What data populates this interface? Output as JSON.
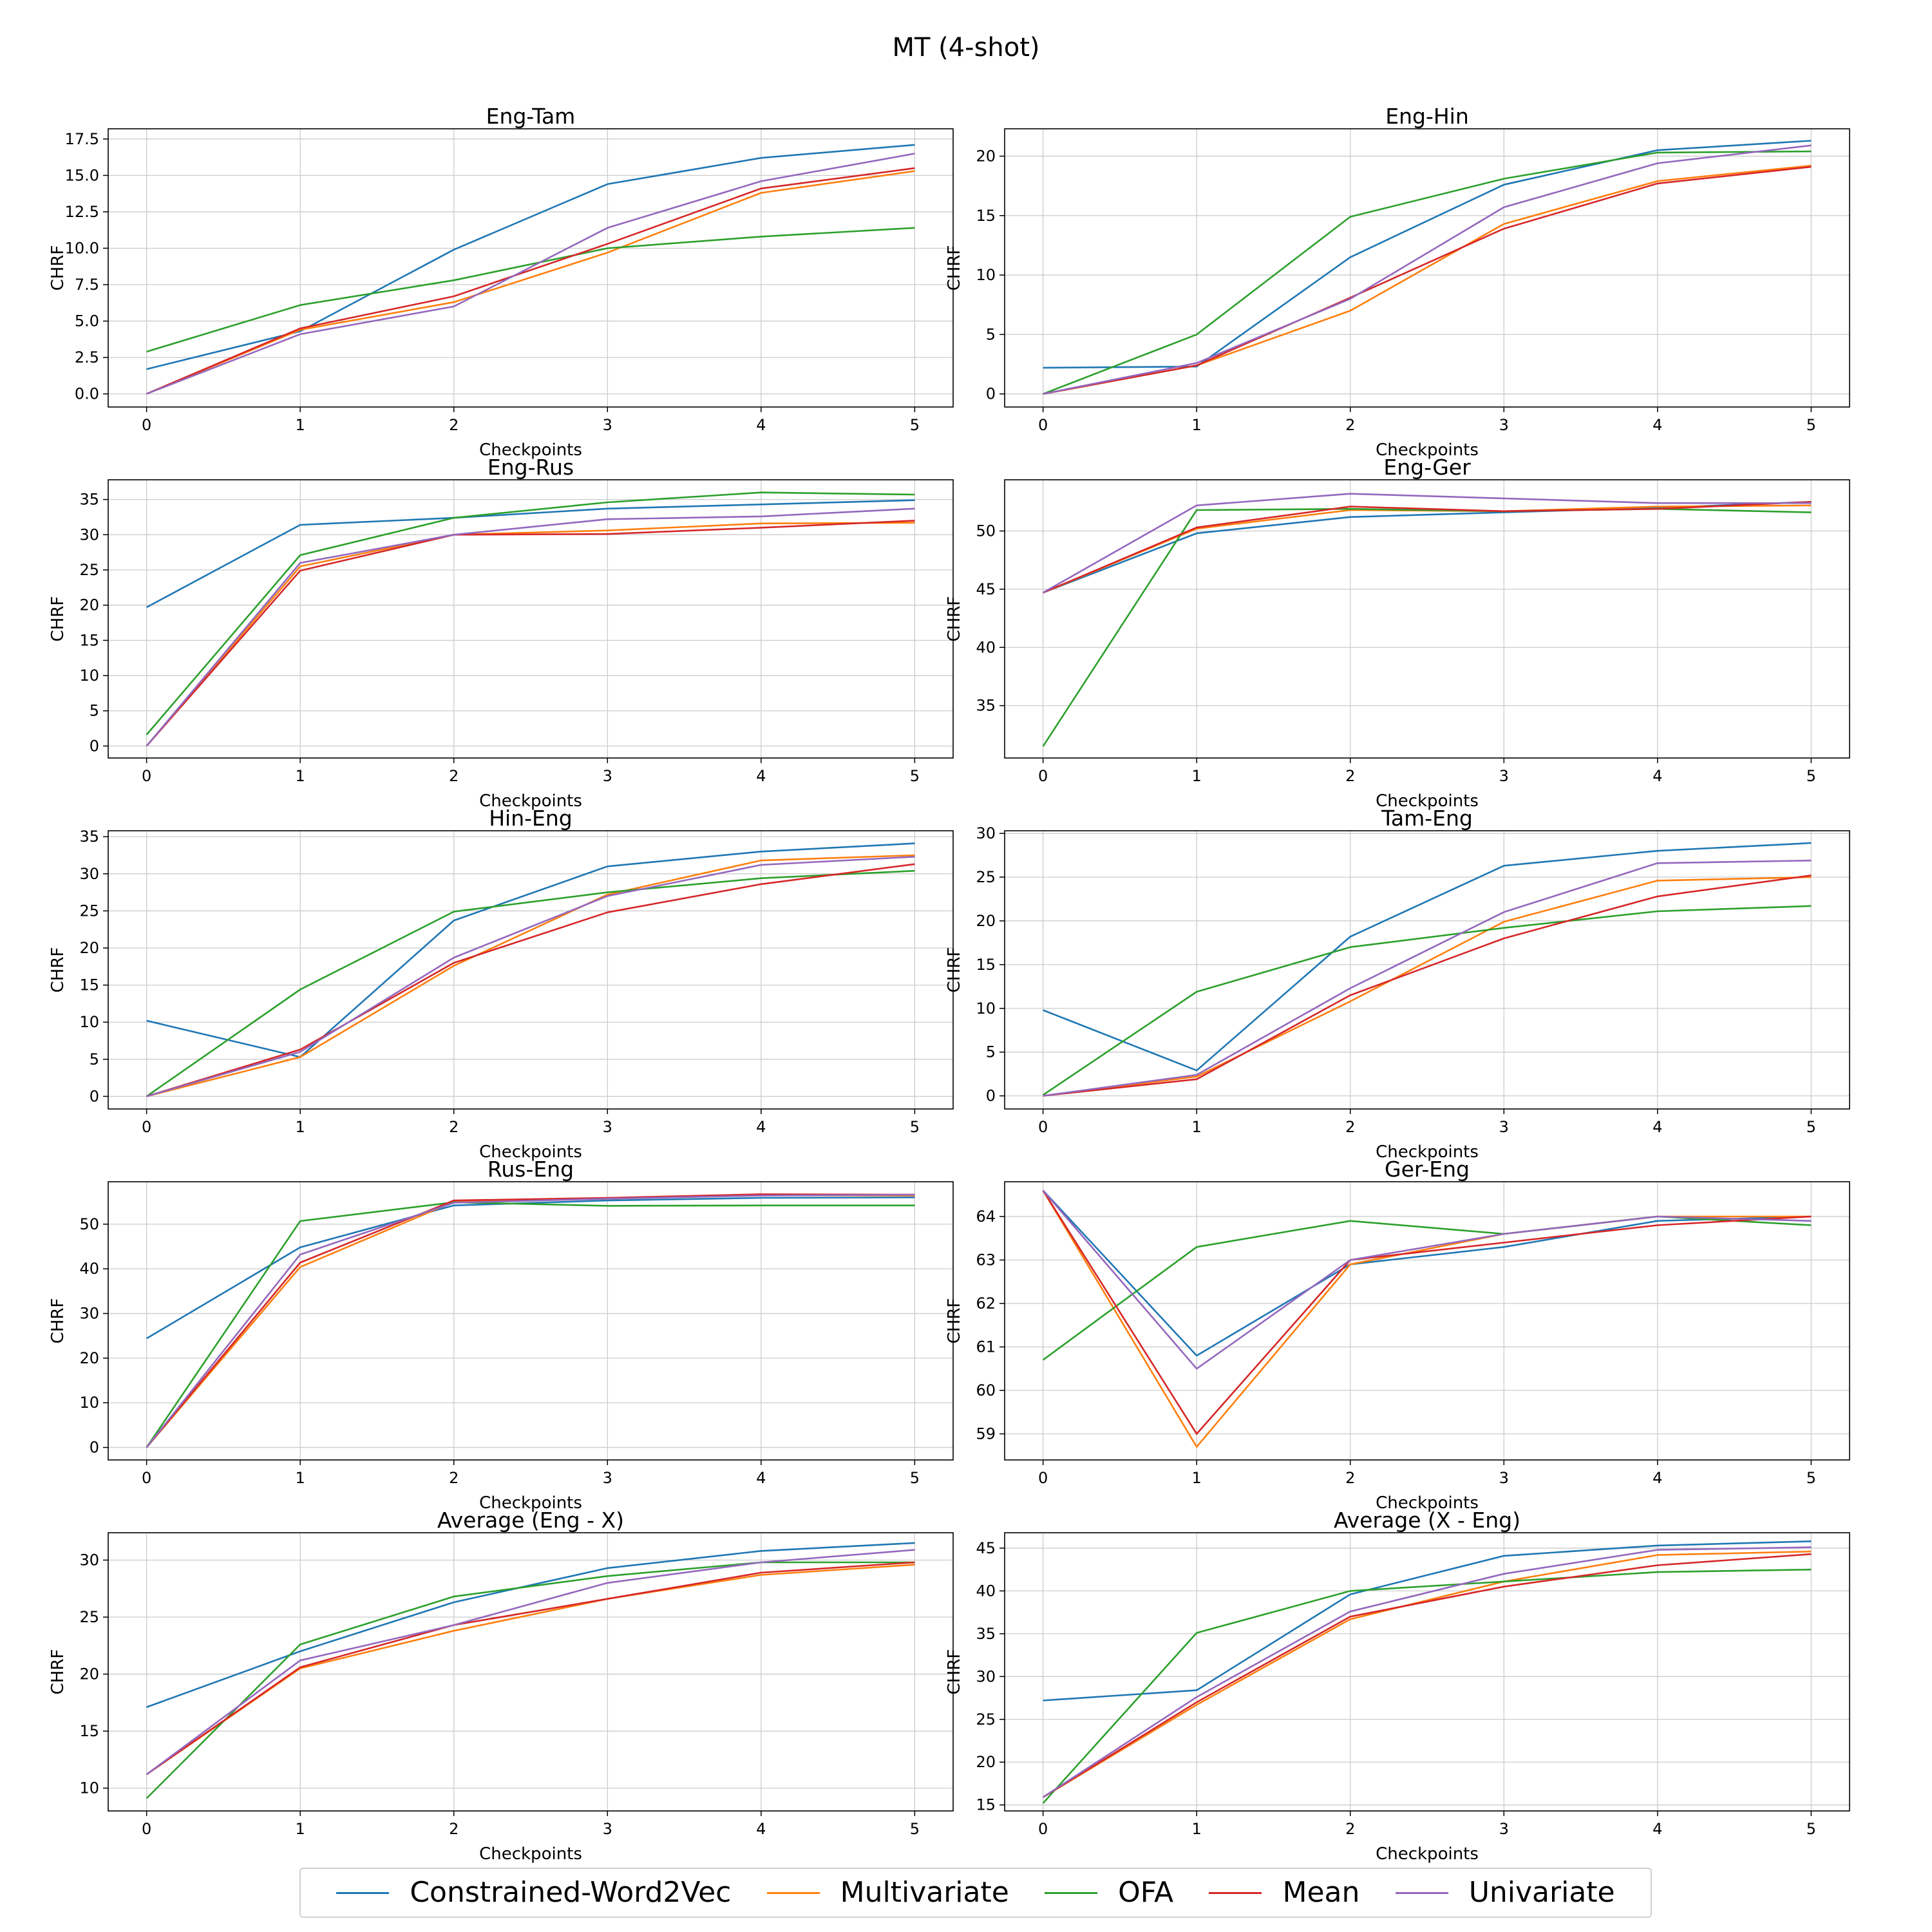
{
  "suptitle": "MT (4-shot)",
  "colors": {
    "Constrained-Word2Vec": "#1f77b4",
    "Multivariate": "#ff7f0e",
    "OFA": "#2ca02c",
    "Mean": "#d62728",
    "Univariate": "#9467bd"
  },
  "legend": {
    "items": [
      {
        "label": "Constrained-Word2Vec",
        "color": "#1f77b4"
      },
      {
        "label": "Multivariate",
        "color": "#ff7f0e"
      },
      {
        "label": "OFA",
        "color": "#2ca02c"
      },
      {
        "label": "Mean",
        "color": "#d62728"
      },
      {
        "label": "Univariate",
        "color": "#9467bd"
      }
    ]
  },
  "chart_data": [
    {
      "type": "line",
      "title": "Eng-Tam",
      "xlabel": "Checkpoints",
      "ylabel": "CHRF",
      "x": [
        0,
        1,
        2,
        3,
        4,
        5
      ],
      "ylim": [
        -0.9,
        18.2
      ],
      "yticks": [
        0,
        2.5,
        5,
        7.5,
        10,
        12.5,
        15,
        17.5
      ],
      "ytick_labels": [
        "0.0",
        "2.5",
        "5.0",
        "7.5",
        "10.0",
        "12.5",
        "15.0",
        "17.5"
      ],
      "series": [
        {
          "name": "Constrained-Word2Vec",
          "values": [
            1.7,
            4.3,
            9.9,
            14.4,
            16.2,
            17.1
          ]
        },
        {
          "name": "Multivariate",
          "values": [
            0,
            4.4,
            6.3,
            9.7,
            13.8,
            15.3
          ]
        },
        {
          "name": "OFA",
          "values": [
            2.9,
            6.1,
            7.8,
            10.0,
            10.8,
            11.4
          ]
        },
        {
          "name": "Mean",
          "values": [
            0,
            4.5,
            6.7,
            10.3,
            14.1,
            15.5
          ]
        },
        {
          "name": "Univariate",
          "values": [
            0,
            4.1,
            6.0,
            11.4,
            14.6,
            16.5
          ]
        }
      ]
    },
    {
      "type": "line",
      "title": "Eng-Hin",
      "xlabel": "Checkpoints",
      "ylabel": "CHRF",
      "x": [
        0,
        1,
        2,
        3,
        4,
        5
      ],
      "ylim": [
        -1.1,
        22.3
      ],
      "yticks": [
        0,
        5,
        10,
        15,
        20
      ],
      "ytick_labels": [
        "0",
        "5",
        "10",
        "15",
        "20"
      ],
      "series": [
        {
          "name": "Constrained-Word2Vec",
          "values": [
            2.2,
            2.3,
            11.5,
            17.6,
            20.5,
            21.3
          ]
        },
        {
          "name": "Multivariate",
          "values": [
            0,
            2.4,
            7.0,
            14.3,
            17.9,
            19.2
          ]
        },
        {
          "name": "OFA",
          "values": [
            0,
            5.0,
            14.9,
            18.1,
            20.3,
            20.4
          ]
        },
        {
          "name": "Mean",
          "values": [
            0,
            2.4,
            8.1,
            13.9,
            17.7,
            19.1
          ]
        },
        {
          "name": "Univariate",
          "values": [
            0,
            2.6,
            8.0,
            15.7,
            19.4,
            20.9
          ]
        }
      ]
    },
    {
      "type": "line",
      "title": "Eng-Rus",
      "xlabel": "Checkpoints",
      "ylabel": "CHRF",
      "x": [
        0,
        1,
        2,
        3,
        4,
        5
      ],
      "ylim": [
        -1.7,
        37.8
      ],
      "yticks": [
        0,
        5,
        10,
        15,
        20,
        25,
        30,
        35
      ],
      "ytick_labels": [
        "0",
        "5",
        "10",
        "15",
        "20",
        "25",
        "30",
        "35"
      ],
      "series": [
        {
          "name": "Constrained-Word2Vec",
          "values": [
            19.7,
            31.4,
            32.4,
            33.7,
            34.3,
            34.9
          ]
        },
        {
          "name": "Multivariate",
          "values": [
            0,
            25.5,
            30.0,
            30.6,
            31.6,
            31.7
          ]
        },
        {
          "name": "OFA",
          "values": [
            1.6,
            27.1,
            32.4,
            34.6,
            36.0,
            35.7
          ]
        },
        {
          "name": "Mean",
          "values": [
            0,
            24.9,
            30.0,
            30.1,
            31.0,
            32.0
          ]
        },
        {
          "name": "Univariate",
          "values": [
            0,
            26.0,
            30.0,
            32.2,
            32.6,
            33.7
          ]
        }
      ]
    },
    {
      "type": "line",
      "title": "Eng-Ger",
      "xlabel": "Checkpoints",
      "ylabel": "CHRF",
      "x": [
        0,
        1,
        2,
        3,
        4,
        5
      ],
      "ylim": [
        30.5,
        54.4
      ],
      "yticks": [
        35,
        40,
        45,
        50
      ],
      "ytick_labels": [
        "35",
        "40",
        "45",
        "50"
      ],
      "series": [
        {
          "name": "Constrained-Word2Vec",
          "values": [
            44.7,
            49.8,
            51.2,
            51.6,
            52.0,
            52.5
          ]
        },
        {
          "name": "Multivariate",
          "values": [
            44.7,
            50.2,
            51.8,
            51.7,
            52.1,
            52.2
          ]
        },
        {
          "name": "OFA",
          "values": [
            31.5,
            51.8,
            51.9,
            51.7,
            51.9,
            51.6
          ]
        },
        {
          "name": "Mean",
          "values": [
            44.7,
            50.3,
            52.1,
            51.7,
            51.9,
            52.5
          ]
        },
        {
          "name": "Univariate",
          "values": [
            44.7,
            52.2,
            53.2,
            52.8,
            52.4,
            52.4
          ]
        }
      ]
    },
    {
      "type": "line",
      "title": "Hin-Eng",
      "xlabel": "Checkpoints",
      "ylabel": "CHRF",
      "x": [
        0,
        1,
        2,
        3,
        4,
        5
      ],
      "ylim": [
        -1.7,
        35.8
      ],
      "yticks": [
        0,
        5,
        10,
        15,
        20,
        25,
        30,
        35
      ],
      "ytick_labels": [
        "0",
        "5",
        "10",
        "15",
        "20",
        "25",
        "30",
        "35"
      ],
      "series": [
        {
          "name": "Constrained-Word2Vec",
          "values": [
            10.2,
            5.3,
            23.7,
            31.0,
            33.0,
            34.1
          ]
        },
        {
          "name": "Multivariate",
          "values": [
            0,
            5.3,
            17.6,
            27.2,
            31.8,
            32.5
          ]
        },
        {
          "name": "OFA",
          "values": [
            0,
            14.4,
            24.9,
            27.5,
            29.4,
            30.4
          ]
        },
        {
          "name": "Mean",
          "values": [
            0,
            6.3,
            18.0,
            24.8,
            28.6,
            31.3
          ]
        },
        {
          "name": "Univariate",
          "values": [
            0,
            6.0,
            18.7,
            27.0,
            31.2,
            32.3
          ]
        }
      ]
    },
    {
      "type": "line",
      "title": "Tam-Eng",
      "xlabel": "Checkpoints",
      "ylabel": "CHRF",
      "x": [
        0,
        1,
        2,
        3,
        4,
        5
      ],
      "ylim": [
        -1.5,
        30.3
      ],
      "yticks": [
        0,
        5,
        10,
        15,
        20,
        25,
        30
      ],
      "ytick_labels": [
        "0",
        "5",
        "10",
        "15",
        "20",
        "25",
        "30"
      ],
      "series": [
        {
          "name": "Constrained-Word2Vec",
          "values": [
            9.8,
            2.9,
            18.2,
            26.3,
            28.0,
            28.9
          ]
        },
        {
          "name": "Multivariate",
          "values": [
            0,
            2.2,
            10.8,
            19.9,
            24.6,
            25.0
          ]
        },
        {
          "name": "OFA",
          "values": [
            0.1,
            11.9,
            17.0,
            19.2,
            21.1,
            21.7
          ]
        },
        {
          "name": "Mean",
          "values": [
            0,
            1.9,
            11.5,
            18.0,
            22.8,
            25.2
          ]
        },
        {
          "name": "Univariate",
          "values": [
            0,
            2.4,
            12.3,
            21.0,
            26.6,
            26.9
          ]
        }
      ]
    },
    {
      "type": "line",
      "title": "Rus-Eng",
      "xlabel": "Checkpoints",
      "ylabel": "CHRF",
      "x": [
        0,
        1,
        2,
        3,
        4,
        5
      ],
      "ylim": [
        -2.8,
        59.5
      ],
      "yticks": [
        0,
        10,
        20,
        30,
        40,
        50
      ],
      "ytick_labels": [
        "0",
        "10",
        "20",
        "30",
        "40",
        "50"
      ],
      "series": [
        {
          "name": "Constrained-Word2Vec",
          "values": [
            24.4,
            44.8,
            54.2,
            55.3,
            55.9,
            56.0
          ]
        },
        {
          "name": "Multivariate",
          "values": [
            0,
            40.4,
            55.0,
            55.7,
            56.5,
            56.4
          ]
        },
        {
          "name": "OFA",
          "values": [
            0,
            50.7,
            54.9,
            54.1,
            54.2,
            54.2
          ]
        },
        {
          "name": "Mean",
          "values": [
            0,
            41.4,
            55.3,
            55.9,
            56.7,
            56.6
          ]
        },
        {
          "name": "Univariate",
          "values": [
            0,
            43.2,
            54.8,
            55.7,
            56.4,
            56.6
          ]
        }
      ]
    },
    {
      "type": "line",
      "title": "Ger-Eng",
      "xlabel": "Checkpoints",
      "ylabel": "CHRF",
      "x": [
        0,
        1,
        2,
        3,
        4,
        5
      ],
      "ylim": [
        58.4,
        64.8
      ],
      "yticks": [
        59,
        60,
        61,
        62,
        63,
        64
      ],
      "ytick_labels": [
        "59",
        "60",
        "61",
        "62",
        "63",
        "64"
      ],
      "series": [
        {
          "name": "Constrained-Word2Vec",
          "values": [
            64.6,
            60.8,
            62.9,
            63.3,
            63.9,
            64.0
          ]
        },
        {
          "name": "Multivariate",
          "values": [
            64.6,
            58.7,
            62.9,
            63.6,
            64.0,
            64.0
          ]
        },
        {
          "name": "OFA",
          "values": [
            60.7,
            63.3,
            63.9,
            63.6,
            64.0,
            63.8
          ]
        },
        {
          "name": "Mean",
          "values": [
            64.6,
            59.0,
            63.0,
            63.4,
            63.8,
            64.0
          ]
        },
        {
          "name": "Univariate",
          "values": [
            64.6,
            60.5,
            63.0,
            63.6,
            64.0,
            63.9
          ]
        }
      ]
    },
    {
      "type": "line",
      "title": "Average (Eng - X)",
      "xlabel": "Checkpoints",
      "ylabel": "CHRF",
      "x": [
        0,
        1,
        2,
        3,
        4,
        5
      ],
      "ylim": [
        8.0,
        32.4
      ],
      "yticks": [
        10,
        15,
        20,
        25,
        30
      ],
      "ytick_labels": [
        "10",
        "15",
        "20",
        "25",
        "30"
      ],
      "series": [
        {
          "name": "Constrained-Word2Vec",
          "values": [
            17.1,
            22.0,
            26.3,
            29.3,
            30.8,
            31.5
          ]
        },
        {
          "name": "Multivariate",
          "values": [
            11.2,
            20.5,
            23.8,
            26.6,
            28.7,
            29.6
          ]
        },
        {
          "name": "OFA",
          "values": [
            9.1,
            22.6,
            26.8,
            28.6,
            29.8,
            29.8
          ]
        },
        {
          "name": "Mean",
          "values": [
            11.2,
            20.6,
            24.3,
            26.6,
            28.9,
            29.8
          ]
        },
        {
          "name": "Univariate",
          "values": [
            11.2,
            21.2,
            24.3,
            28.0,
            29.8,
            30.9
          ]
        }
      ]
    },
    {
      "type": "line",
      "title": "Average (X - Eng)",
      "xlabel": "Checkpoints",
      "ylabel": "CHRF",
      "x": [
        0,
        1,
        2,
        3,
        4,
        5
      ],
      "ylim": [
        14.3,
        46.8
      ],
      "yticks": [
        15,
        20,
        25,
        30,
        35,
        40,
        45
      ],
      "ytick_labels": [
        "15",
        "20",
        "25",
        "30",
        "35",
        "40",
        "45"
      ],
      "series": [
        {
          "name": "Constrained-Word2Vec",
          "values": [
            27.2,
            28.4,
            39.6,
            44.1,
            45.3,
            45.8
          ]
        },
        {
          "name": "Multivariate",
          "values": [
            15.9,
            26.7,
            36.7,
            41.1,
            44.2,
            44.6
          ]
        },
        {
          "name": "OFA",
          "values": [
            15.2,
            35.1,
            40.0,
            41.1,
            42.2,
            42.5
          ]
        },
        {
          "name": "Mean",
          "values": [
            15.9,
            27.0,
            37.0,
            40.5,
            43.0,
            44.3
          ]
        },
        {
          "name": "Univariate",
          "values": [
            15.9,
            27.6,
            37.6,
            42.0,
            44.8,
            45.1
          ]
        }
      ]
    }
  ]
}
